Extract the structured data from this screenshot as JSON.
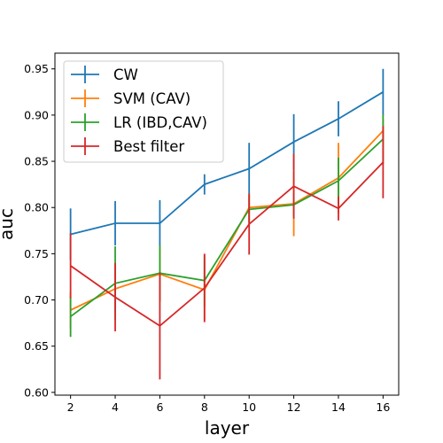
{
  "chart_data": {
    "type": "line",
    "xlabel": "layer",
    "ylabel": "auc",
    "x": [
      2,
      4,
      6,
      8,
      10,
      12,
      14,
      16
    ],
    "xlim": [
      1.3,
      16.7
    ],
    "ylim": [
      0.597,
      0.967
    ],
    "xticks": [
      "2",
      "4",
      "6",
      "8",
      "10",
      "12",
      "14",
      "16"
    ],
    "yticks": [
      "0.60",
      "0.65",
      "0.70",
      "0.75",
      "0.80",
      "0.85",
      "0.90",
      "0.95"
    ],
    "grid": false,
    "legend_position": "top-left",
    "series": [
      {
        "name": "CW",
        "color": "#1f77b4",
        "values": [
          0.771,
          0.783,
          0.783,
          0.825,
          0.842,
          0.871,
          0.896,
          0.925
        ],
        "errors": [
          0.028,
          0.024,
          0.025,
          0.011,
          0.028,
          0.03,
          0.019,
          0.025
        ]
      },
      {
        "name": "SVM (CAV)",
        "color": "#ff7f0e",
        "values": [
          0.689,
          0.712,
          0.728,
          0.711,
          0.8,
          0.804,
          0.832,
          0.883
        ],
        "errors": [
          0.02,
          0.025,
          0.03,
          0.033,
          0.015,
          0.035,
          0.038,
          0.012
        ]
      },
      {
        "name": "LR (IBD,CAV)",
        "color": "#2ca02c",
        "values": [
          0.682,
          0.718,
          0.729,
          0.721,
          0.798,
          0.803,
          0.829,
          0.874
        ],
        "errors": [
          0.022,
          0.04,
          0.03,
          0.028,
          0.015,
          0.012,
          0.025,
          0.027
        ]
      },
      {
        "name": "Best filter",
        "color": "#d62728",
        "values": [
          0.737,
          0.703,
          0.672,
          0.713,
          0.782,
          0.823,
          0.799,
          0.849
        ],
        "errors": [
          0.035,
          0.037,
          0.058,
          0.037,
          0.033,
          0.035,
          0.013,
          0.039
        ]
      }
    ]
  }
}
